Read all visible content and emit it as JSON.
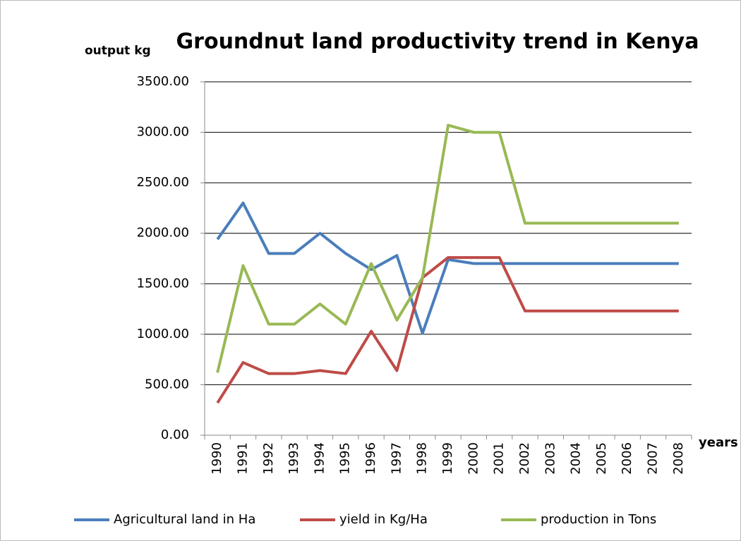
{
  "chart_data": {
    "type": "line",
    "title": "Groundnut land productivity trend in Kenya",
    "y_label": "output kg",
    "x_label": "years",
    "categories": [
      "1990",
      "1991",
      "1992",
      "1993",
      "1994",
      "1995",
      "1996",
      "1997",
      "1998",
      "1999",
      "2000",
      "2001",
      "2002",
      "2003",
      "2004",
      "2005",
      "2006",
      "2007",
      "2008"
    ],
    "series": [
      {
        "name": "Agricultural land in Ha",
        "color": "#4a7ebb",
        "values": [
          1940,
          2300,
          1800,
          1800,
          2000,
          1800,
          1640,
          1780,
          1010,
          1740,
          1700,
          1700,
          1700,
          1700,
          1700,
          1700,
          1700,
          1700,
          1700
        ]
      },
      {
        "name": "yield in Kg/Ha",
        "color": "#be4b48",
        "values": [
          320,
          720,
          610,
          610,
          640,
          610,
          1030,
          640,
          1560,
          1760,
          1760,
          1760,
          1230,
          1230,
          1230,
          1230,
          1230,
          1230,
          1230
        ]
      },
      {
        "name": "production in Tons",
        "color": "#98b954",
        "values": [
          620,
          1680,
          1100,
          1100,
          1300,
          1100,
          1700,
          1140,
          1560,
          3070,
          3000,
          3000,
          2100,
          2100,
          2100,
          2100,
          2100,
          2100,
          2100
        ]
      }
    ],
    "ylim": [
      0,
      3500
    ],
    "yticks": [
      {
        "value": 0,
        "label": "0.00"
      },
      {
        "value": 500,
        "label": "500.00"
      },
      {
        "value": 1000,
        "label": "1000.00"
      },
      {
        "value": 1500,
        "label": "1500.00"
      },
      {
        "value": 2000,
        "label": "2000.00"
      },
      {
        "value": 2500,
        "label": "2500.00"
      },
      {
        "value": 3000,
        "label": "3000.00"
      },
      {
        "value": 3500,
        "label": "3500.00"
      }
    ],
    "grid": true,
    "legend": "bottom"
  }
}
